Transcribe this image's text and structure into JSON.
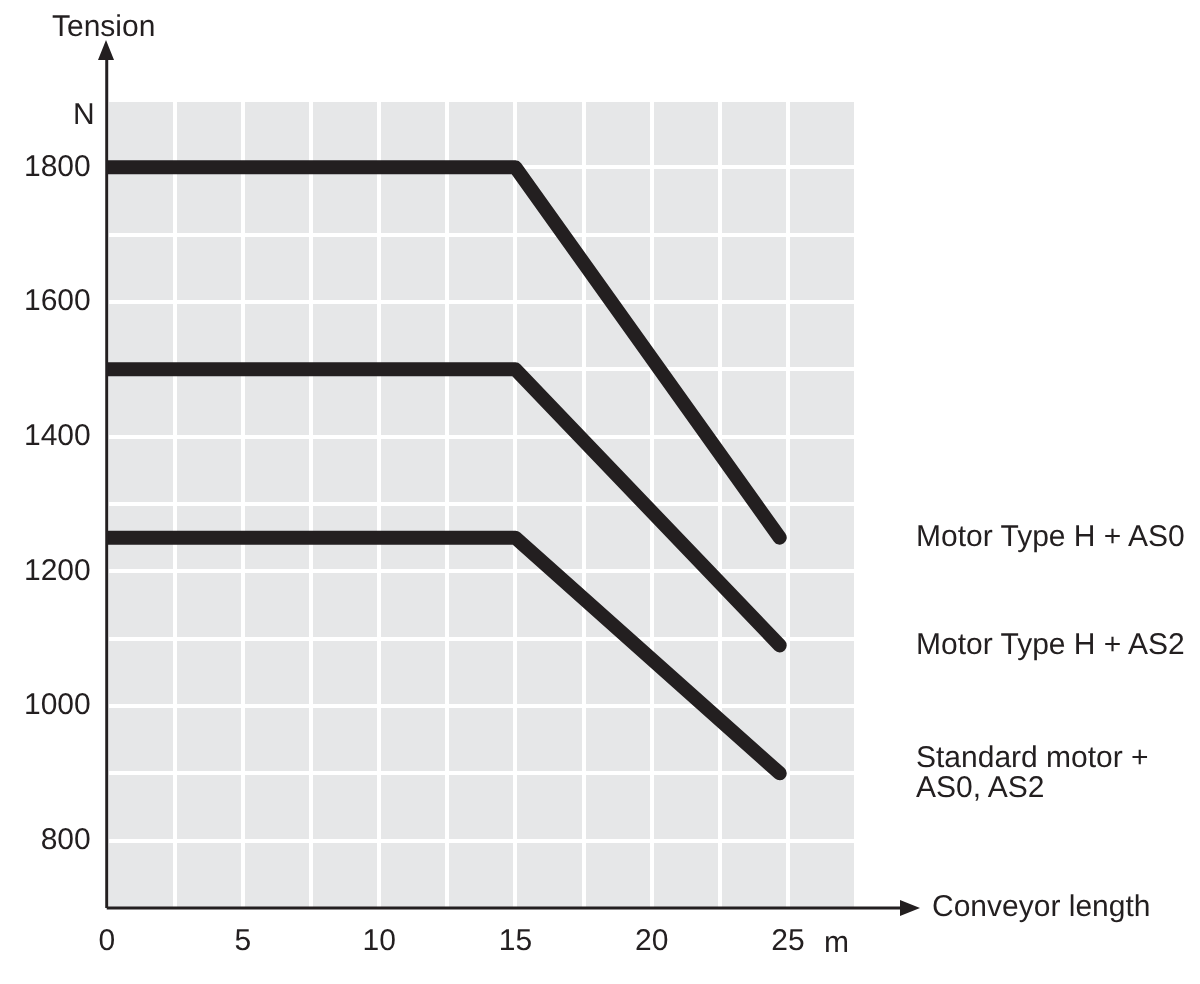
{
  "chart_data": {
    "type": "line",
    "xlabel": "Conveyor length",
    "ylabel": "Tension",
    "annotations": [
      "N",
      "m"
    ],
    "xlim": [
      0,
      27.5
    ],
    "ylim": [
      700,
      1900
    ],
    "xticks": [
      0,
      {
        "value": 2.5,
        "label": null
      },
      5,
      {
        "value": 7.5,
        "label": null
      },
      10,
      {
        "value": 12.5,
        "label": null
      },
      15,
      {
        "value": 17.5,
        "label": null
      },
      20,
      {
        "value": 22.5,
        "label": null
      },
      25,
      {
        "value": 27.5,
        "label": null
      }
    ],
    "yticks": [
      800,
      {
        "value": 900,
        "label": null
      },
      1000,
      {
        "value": 1100,
        "label": null
      },
      1200,
      {
        "value": 1300,
        "label": null
      },
      1400,
      {
        "value": 1500,
        "label": null
      },
      1600,
      {
        "value": 1700,
        "label": null
      },
      1800,
      {
        "value": 1900,
        "label": null
      }
    ],
    "grid": true,
    "legend": false,
    "marker": "none",
    "line_style": "solid",
    "series": [
      {
        "name": "Motor Type H + AS0",
        "color": "#231f20",
        "x": [
          0,
          15,
          24.7
        ],
        "values": [
          1800,
          1800,
          1250
        ]
      },
      {
        "name": "Motor Type H + AS2",
        "color": "#231f20",
        "x": [
          0,
          15,
          24.7
        ],
        "values": [
          1500,
          1500,
          1090
        ]
      },
      {
        "name": "Standard motor + AS0, AS2",
        "color": "#231f20",
        "x": [
          0,
          15,
          24.7
        ],
        "values": [
          1250,
          1250,
          900
        ]
      }
    ]
  }
}
